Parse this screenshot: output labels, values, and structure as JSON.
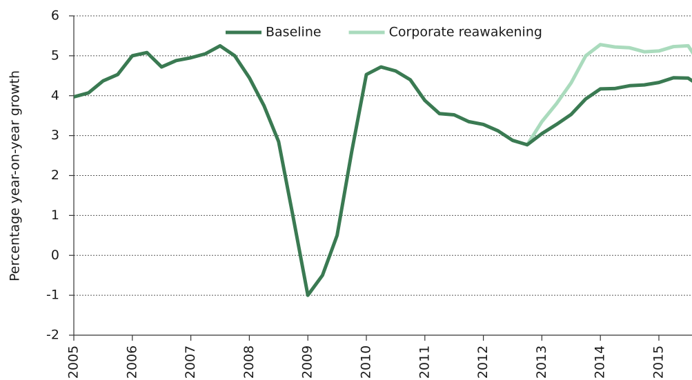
{
  "chart_data": {
    "type": "line",
    "y_label": "Percentage year-on-year growth",
    "x": [
      2005,
      2005.25,
      2005.5,
      2005.75,
      2006,
      2006.25,
      2006.5,
      2006.75,
      2007,
      2007.25,
      2007.5,
      2007.75,
      2008,
      2008.25,
      2008.5,
      2008.75,
      2009,
      2009.25,
      2009.5,
      2009.75,
      2010,
      2010.25,
      2010.5,
      2010.75,
      2011,
      2011.25,
      2011.5,
      2011.75,
      2012,
      2012.25,
      2012.5,
      2012.75,
      2013,
      2013.25,
      2013.5,
      2013.75,
      2014,
      2014.25,
      2014.5,
      2014.75,
      2015,
      2015.25,
      2015.5,
      2015.75
    ],
    "series": [
      {
        "name": "Baseline",
        "color": "#3a7a52",
        "values": [
          3.97,
          4.07,
          4.37,
          4.53,
          5.0,
          5.08,
          4.72,
          4.88,
          4.95,
          5.05,
          5.25,
          5.0,
          4.45,
          3.75,
          2.85,
          0.95,
          -1.0,
          -0.5,
          0.5,
          2.6,
          4.53,
          4.72,
          4.62,
          4.4,
          3.88,
          3.55,
          3.52,
          3.35,
          3.28,
          3.12,
          2.88,
          2.77,
          3.05,
          3.28,
          3.53,
          3.92,
          4.17,
          4.18,
          4.25,
          4.27,
          4.33,
          4.45,
          4.44,
          4.2
        ]
      },
      {
        "name": "Corporate reawakening",
        "color": "#aadbbd",
        "values": [
          null,
          null,
          null,
          null,
          null,
          null,
          null,
          null,
          null,
          null,
          null,
          null,
          null,
          null,
          null,
          null,
          null,
          null,
          null,
          null,
          null,
          null,
          null,
          null,
          null,
          null,
          null,
          null,
          null,
          null,
          null,
          2.77,
          3.35,
          3.8,
          4.32,
          5.0,
          5.28,
          5.22,
          5.2,
          5.1,
          5.12,
          5.23,
          5.25,
          4.7
        ]
      }
    ],
    "xlim": [
      2005,
      2015.566
    ],
    "xticks": [
      2005,
      2006,
      2007,
      2008,
      2009,
      2010,
      2011,
      2012,
      2013,
      2014,
      2015
    ],
    "ylim": [
      -2,
      6
    ],
    "yticks": [
      -2,
      -1,
      0,
      1,
      2,
      3,
      4,
      5,
      6
    ],
    "grid": true,
    "legend": "top"
  }
}
